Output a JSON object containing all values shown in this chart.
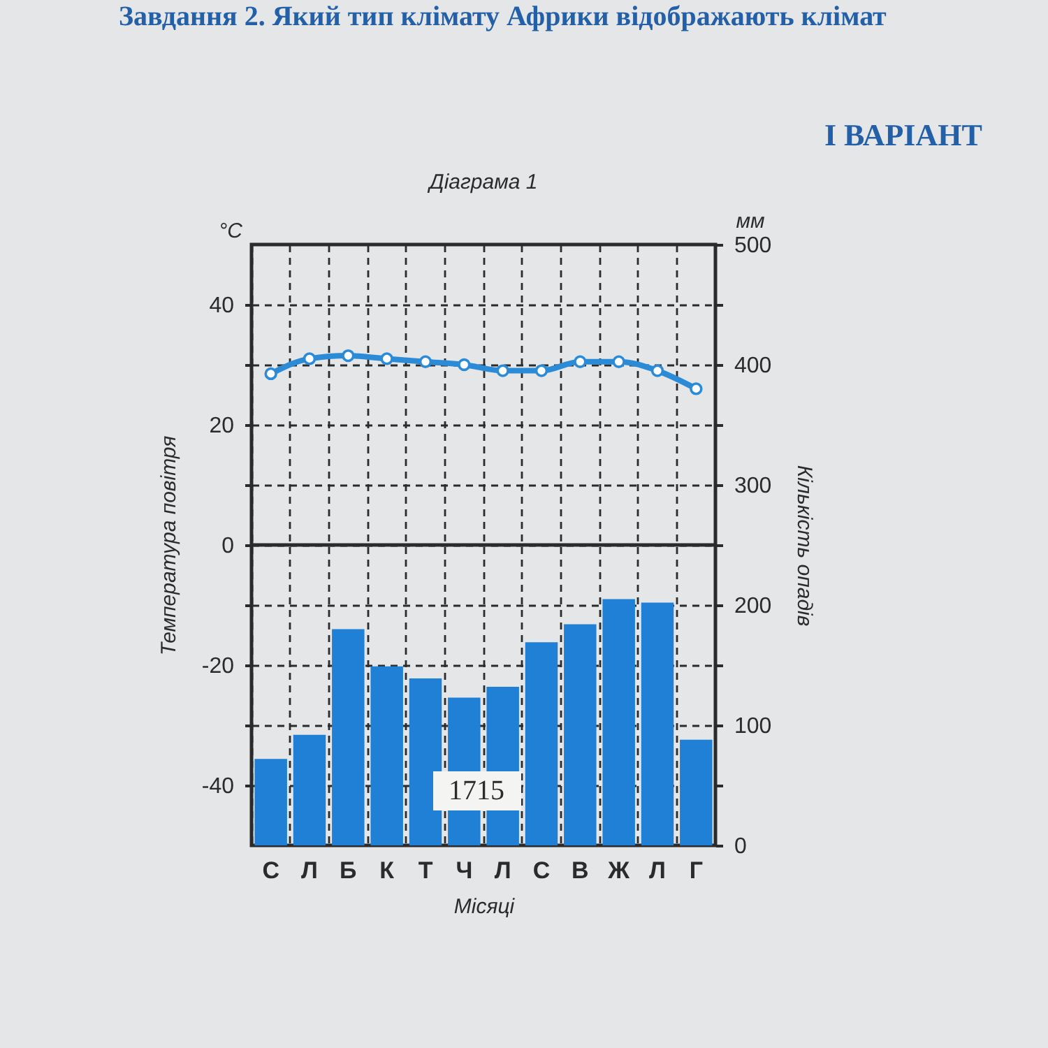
{
  "chart_data": {
    "type": "bar",
    "title": "Діаграма 1",
    "xlabel": "Місяці",
    "ylabel": "Температура повітря",
    "y2label": "Кількість опадів",
    "categories": [
      "С",
      "Л",
      "Б",
      "К",
      "Т",
      "Ч",
      "Л",
      "С",
      "В",
      "Ж",
      "Л",
      "Г"
    ],
    "series": [
      {
        "axis": "y2",
        "color": "#1f80d6",
        "values": [
          72,
          92,
          180,
          149,
          139,
          123,
          132,
          169,
          184,
          205,
          202,
          88
        ]
      },
      {
        "type": "line",
        "axis": "y",
        "color": "#2b8bd6",
        "values": [
          28.5,
          31,
          31.5,
          31,
          30.5,
          30,
          29,
          29,
          30.5,
          30.5,
          29,
          26
        ]
      }
    ],
    "ylim": [
      -50,
      50
    ],
    "yticks": [
      -40,
      {
        "value": -30,
        "label": null
      },
      -20,
      {
        "value": -10,
        "label": null
      },
      0,
      {
        "value": 10,
        "label": null
      },
      20,
      {
        "value": 30,
        "label": null
      },
      40
    ],
    "y2lim": [
      0,
      500
    ],
    "y2ticks": [
      0,
      {
        "value": 50,
        "label": null
      },
      100,
      {
        "value": 150,
        "label": null
      },
      200,
      {
        "value": 250,
        "label": null
      },
      300,
      {
        "value": 350,
        "label": null
      },
      400,
      {
        "value": 450,
        "label": null
      },
      500
    ],
    "ref_lines": [
      {
        "axis": "y",
        "value": 0,
        "color": "#2b2b2b"
      }
    ],
    "grid": true,
    "marker": "circle",
    "line_style": "solid",
    "annotations": [
      "Завдання 2. Який тип клімату Африки відображають клімат",
      "І ВАРІАНТ",
      "°C",
      "мм",
      "1715"
    ]
  }
}
